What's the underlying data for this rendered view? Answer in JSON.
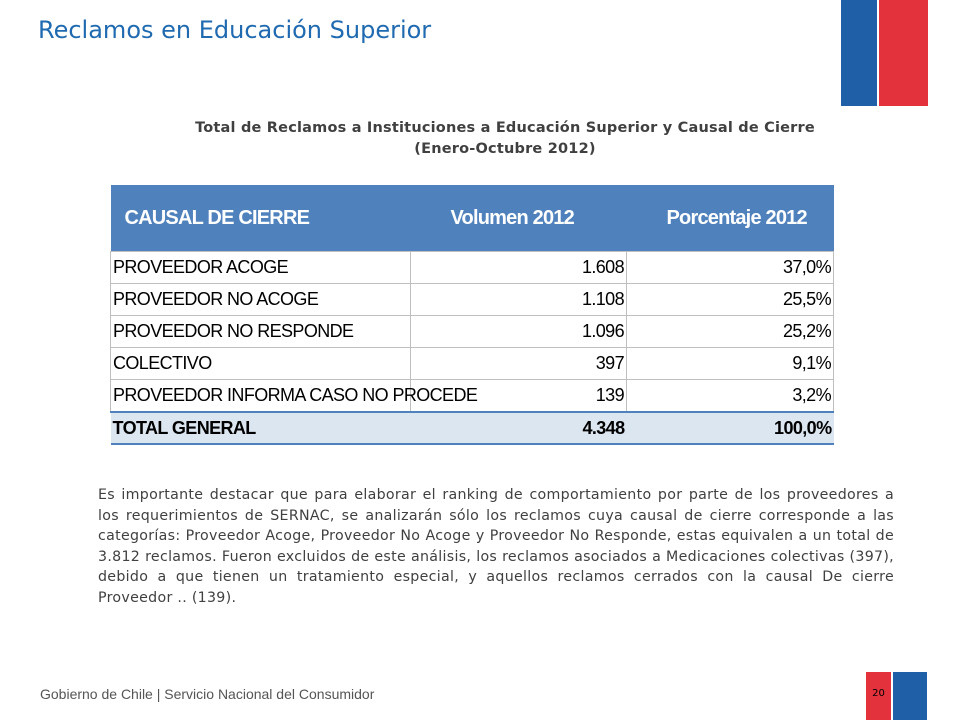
{
  "title": "Reclamos en Educación Superior",
  "subtitle_line1": "Total de Reclamos a Instituciones a Educación Superior y Causal de Cierre",
  "subtitle_line2": "(Enero-Octubre 2012)",
  "table": {
    "headers": [
      "CAUSAL DE CIERRE",
      "Volumen 2012",
      "Porcentaje 2012"
    ],
    "rows": [
      [
        "PROVEEDOR ACOGE",
        "1.608",
        "37,0%"
      ],
      [
        "PROVEEDOR NO ACOGE",
        "1.108",
        "25,5%"
      ],
      [
        "PROVEEDOR NO RESPONDE",
        "1.096",
        "25,2%"
      ],
      [
        "COLECTIVO",
        "397",
        "9,1%"
      ],
      [
        "PROVEEDOR INFORMA CASO NO PROCEDE",
        "139",
        "3,2%"
      ]
    ],
    "total": [
      "TOTAL GENERAL",
      "4.348",
      "100,0%"
    ]
  },
  "body_text": "Es importante destacar que para elaborar el ranking de comportamiento por parte de los proveedores a los requerimientos de SERNAC, se analizarán sólo los reclamos cuya causal de cierre corresponde a las categorías: Proveedor Acoge, Proveedor No Acoge y Proveedor No Responde, estas equivalen a un total de 3.812 reclamos. Fueron excluidos de este análisis, los reclamos asociados a Medicaciones colectivas (397), debido a que tienen un tratamiento especial,  y aquellos reclamos cerrados con la causal De cierre Proveedor .. (139).",
  "footer": "Gobierno de Chile | Servicio Nacional del Consumidor",
  "page_number": "20",
  "colors": {
    "title": "#1F6AB0",
    "header_bg": "#4F81BD",
    "total_bg": "#DCE6F1",
    "flag_blue": "#1F5FA8",
    "flag_red": "#E3323B"
  }
}
